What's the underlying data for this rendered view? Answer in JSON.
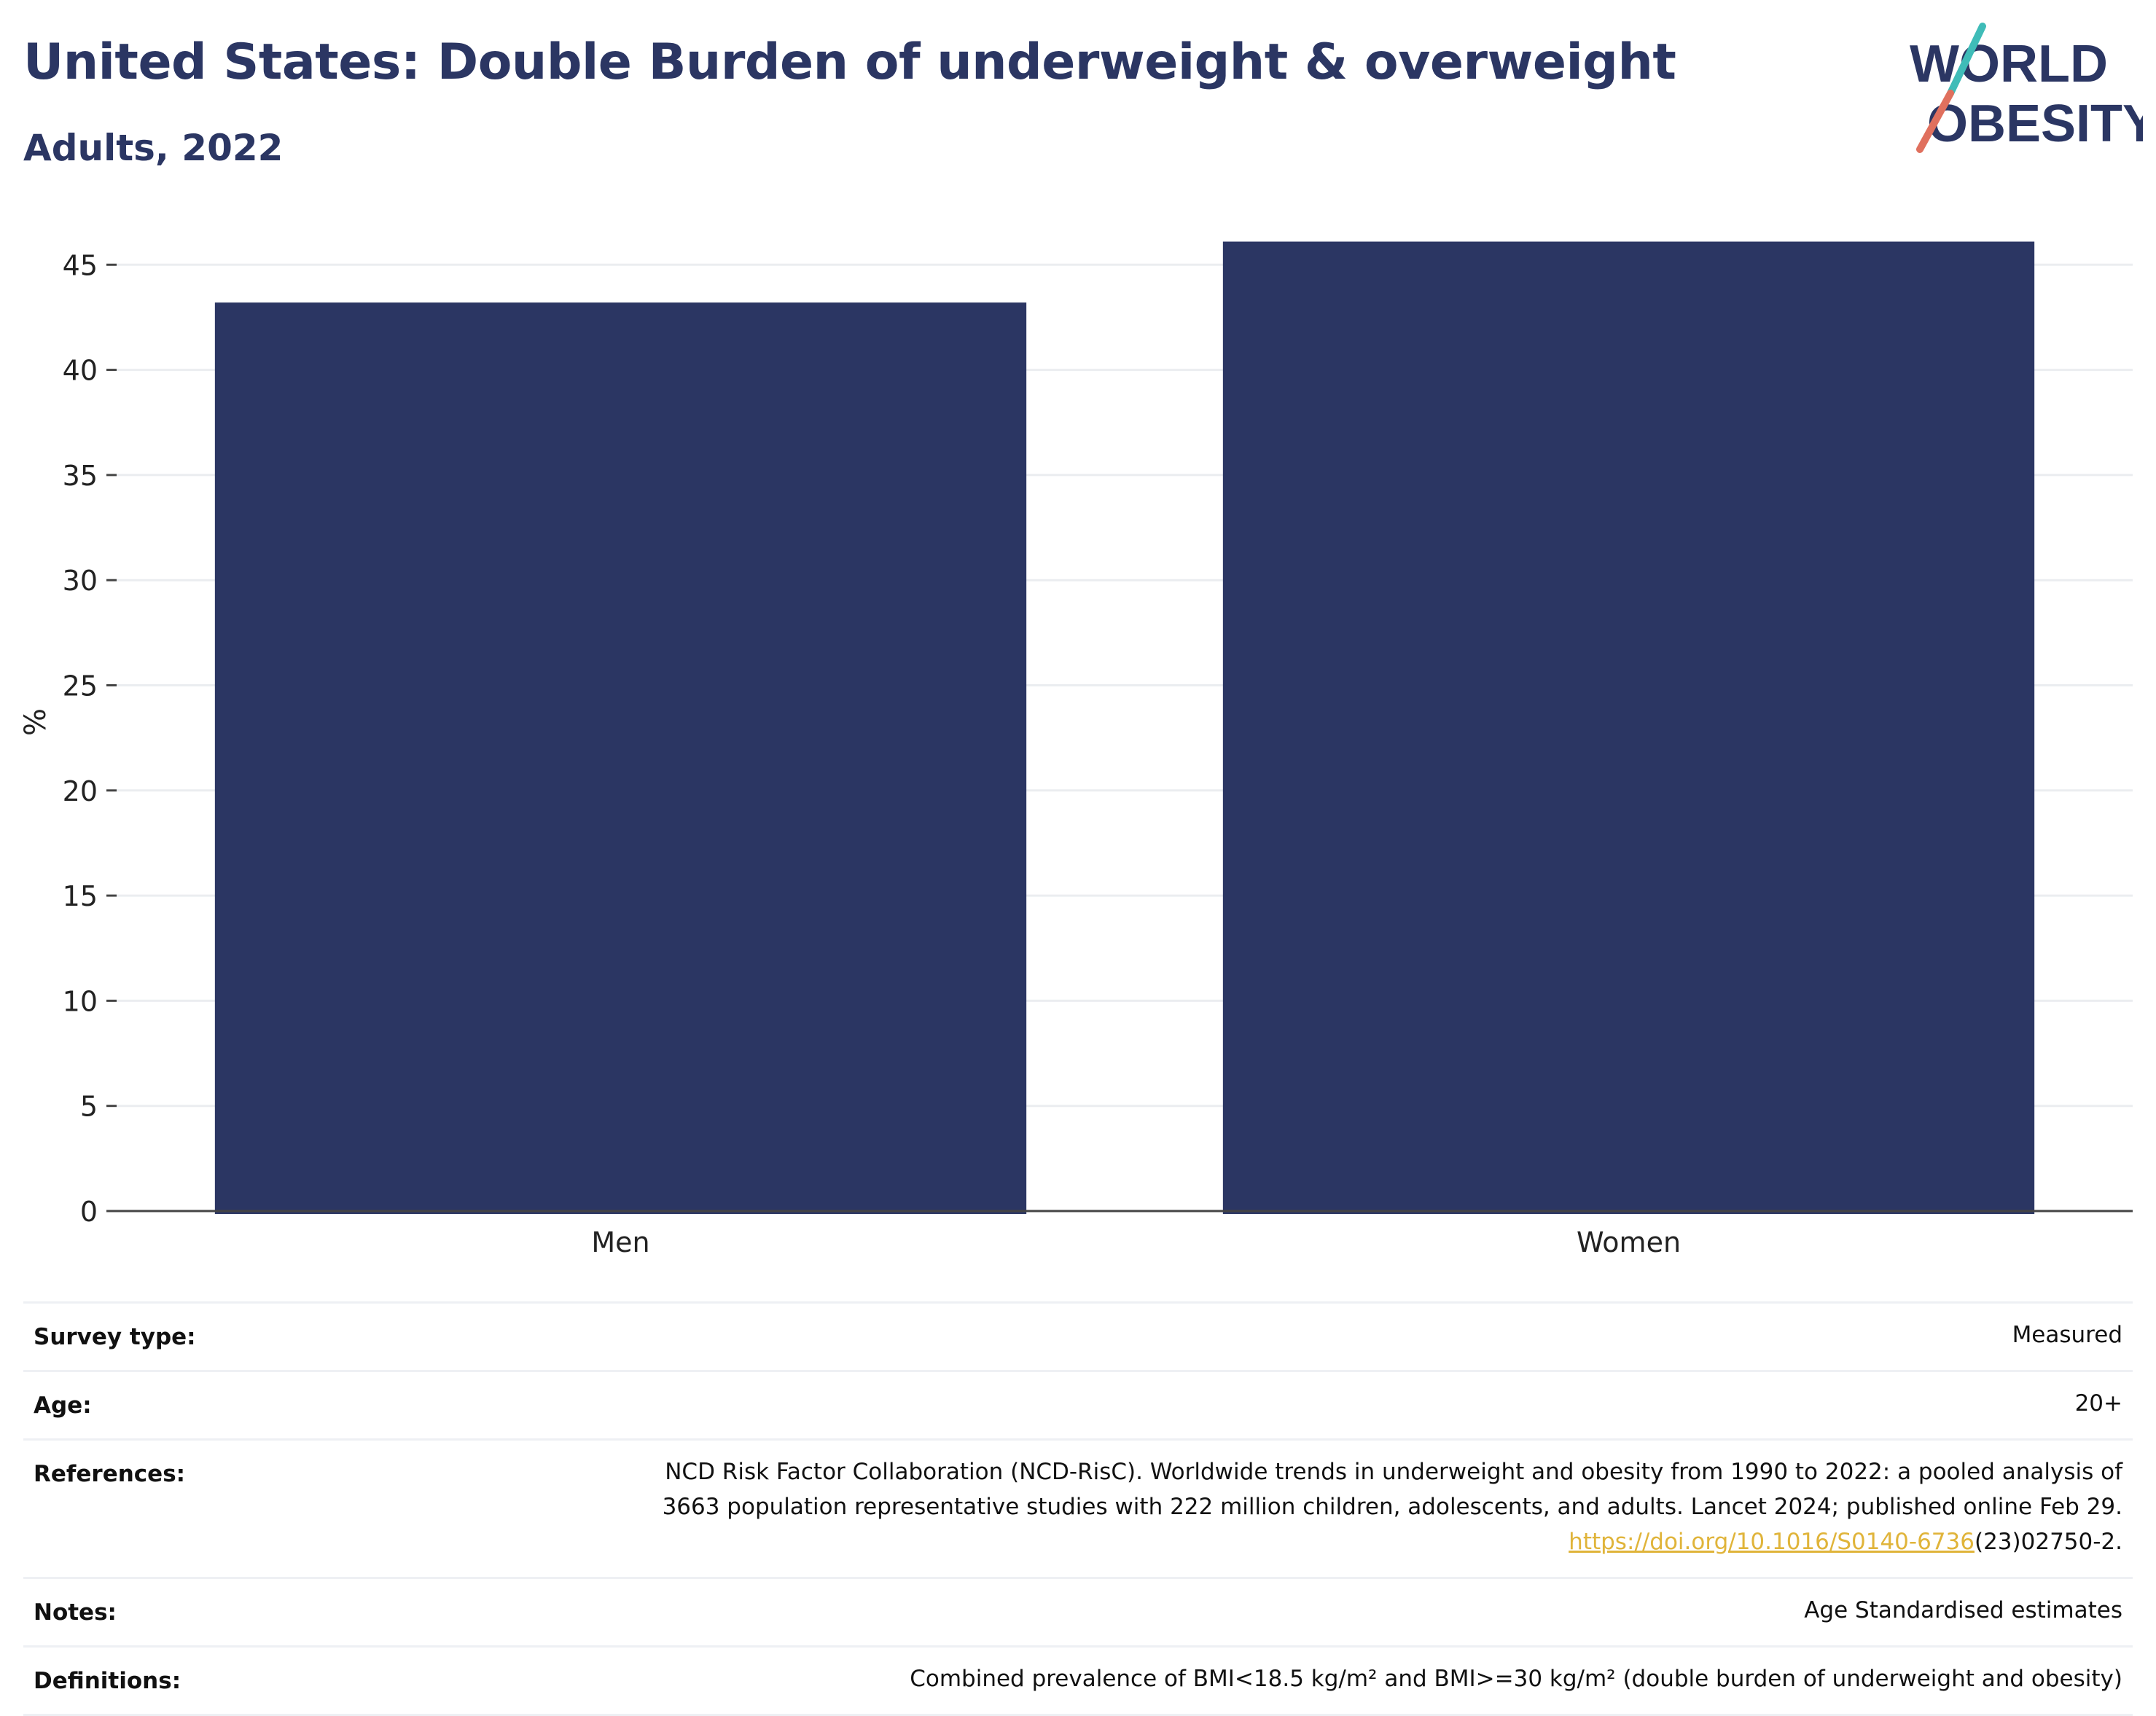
{
  "header": {
    "title": "United States: Double Burden of underweight & overweight",
    "subtitle": "Adults, 2022"
  },
  "logo": {
    "line1": "WORLD",
    "line2": "OBESITY",
    "colors": {
      "text": "#2b3663",
      "slash_top": "#3fbcb8",
      "slash_bottom": "#e0705e"
    }
  },
  "chart_data": {
    "type": "bar",
    "title": "United States: Double Burden of underweight & overweight",
    "subtitle": "Adults, 2022",
    "categories": [
      "Men",
      "Women"
    ],
    "values": [
      43.2,
      46.1
    ],
    "ylabel": "%",
    "xlabel": "",
    "ylim": [
      0,
      46.5
    ],
    "yticks": [
      0,
      5,
      10,
      15,
      20,
      25,
      30,
      35,
      40,
      45
    ],
    "grid": true,
    "bar_color": "#2b3663"
  },
  "meta": {
    "survey_type": {
      "label": "Survey type:",
      "value": "Measured"
    },
    "age": {
      "label": "Age:",
      "value": "20+"
    },
    "references": {
      "label": "References:",
      "line1": "NCD Risk Factor Collaboration (NCD-RisC). Worldwide trends in underweight and obesity from 1990 to 2022: a pooled analysis of",
      "line2": "3663 population representative studies with 222 million children, adolescents, and adults. Lancet 2024; published online Feb 29.",
      "link": "https://doi.org/10.1016/S0140-6736",
      "link_suffix": "(23)02750-2."
    },
    "notes": {
      "label": "Notes:",
      "value": "Age Standardised estimates"
    },
    "definitions": {
      "label": "Definitions:",
      "value": "Combined prevalence of BMI<18.5 kg/m² and BMI>=30 kg/m² (double burden of underweight and obesity)"
    }
  }
}
